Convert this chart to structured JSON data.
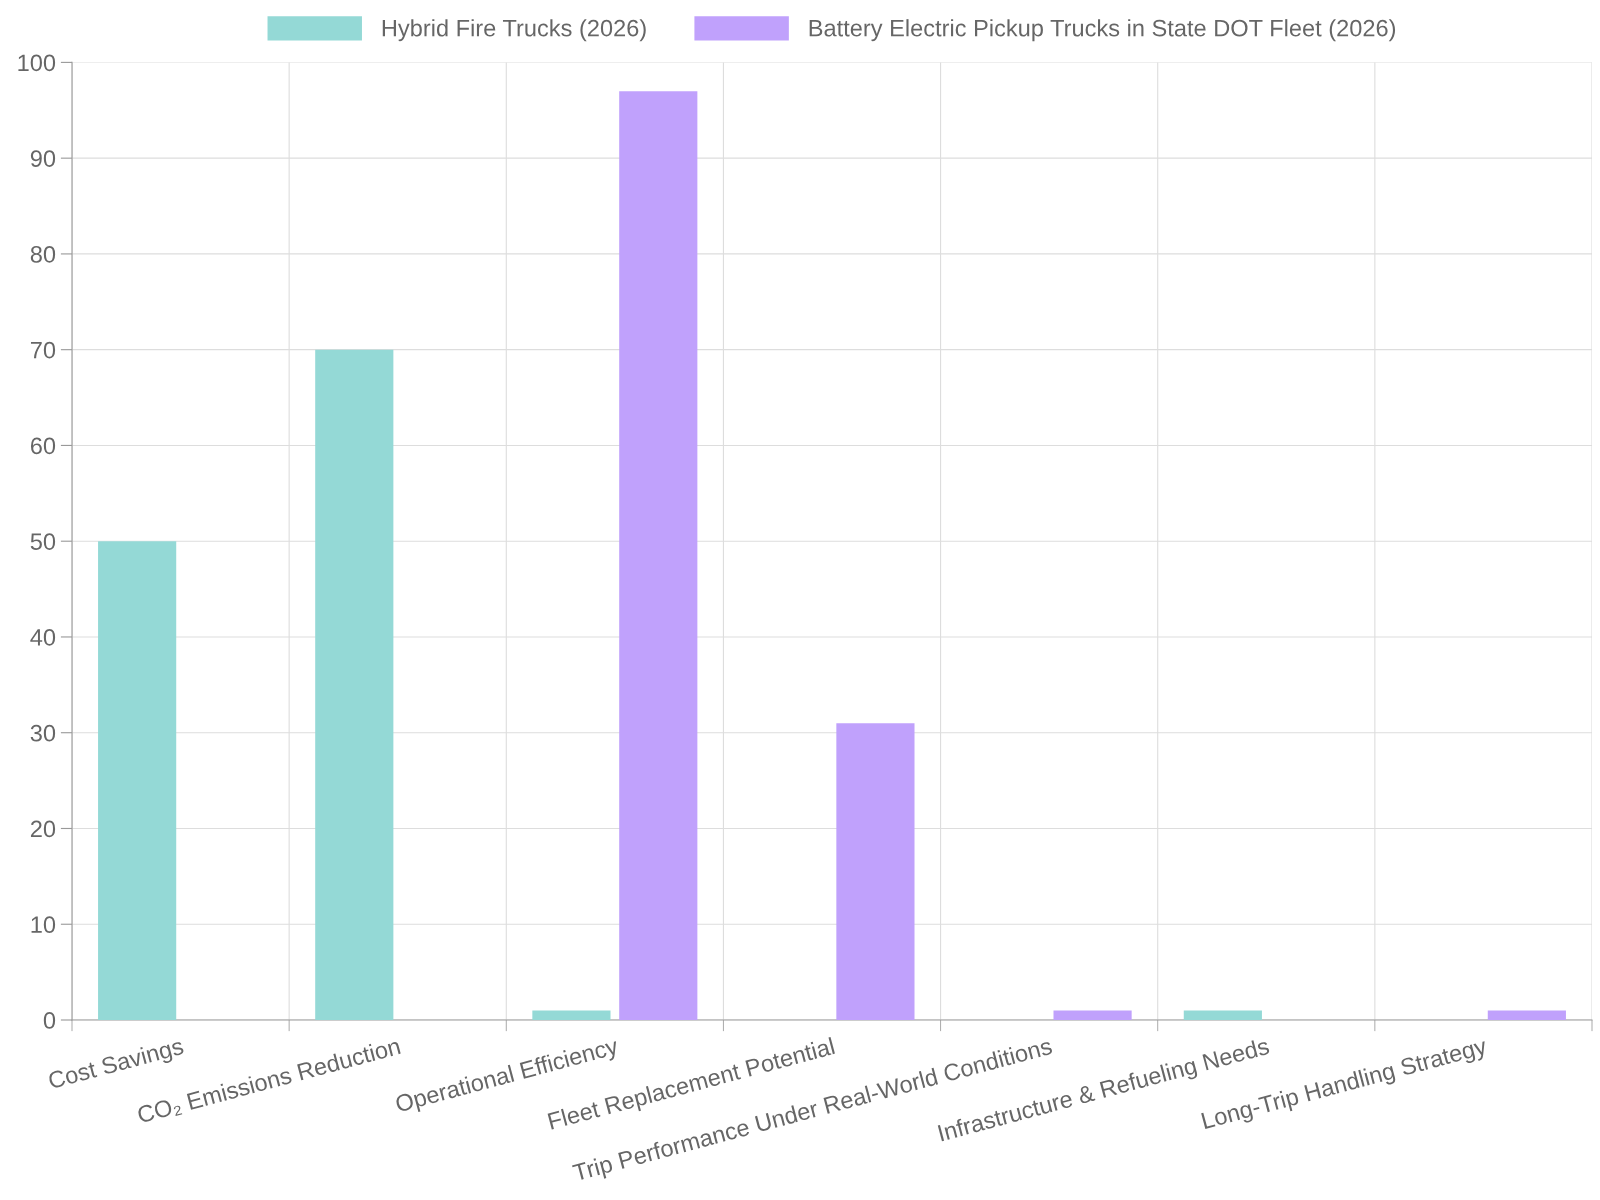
{
  "chart_data": {
    "type": "bar",
    "categories": [
      "Cost Savings",
      "CO₂ Emissions Reduction",
      "Operational Efficiency",
      "Fleet Replacement Potential",
      "Trip Performance Under Real-World Conditions",
      "Infrastructure & Refueling Needs",
      "Long-Trip Handling Strategy"
    ],
    "series": [
      {
        "name": "Hybrid Fire Trucks (2026)",
        "color": "#94d9d6",
        "values": [
          50,
          70,
          1,
          0,
          0,
          1,
          0
        ]
      },
      {
        "name": "Battery Electric Pickup Trucks in State DOT Fleet (2026)",
        "color": "#c0a1fc",
        "values": [
          0,
          0,
          97,
          31,
          1,
          0,
          1
        ]
      }
    ],
    "ylim": [
      0,
      100
    ],
    "yticks": [
      0,
      10,
      20,
      30,
      40,
      50,
      60,
      70,
      80,
      90,
      100
    ],
    "grid": true,
    "legend": "top"
  }
}
